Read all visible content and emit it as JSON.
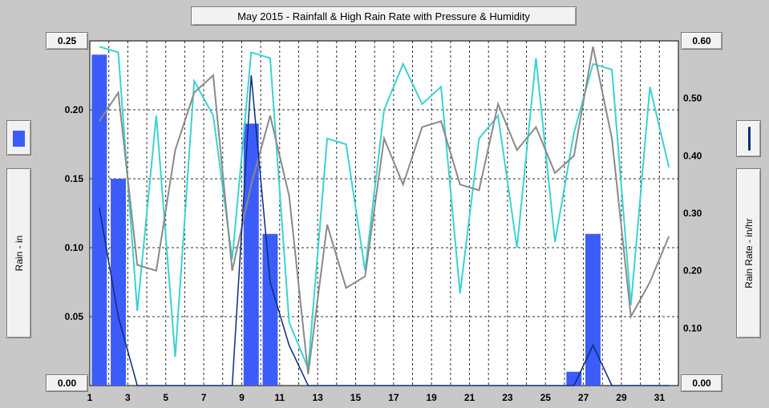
{
  "chart_data": {
    "type": "bar",
    "title": "May 2015 - Rainfall & High Rain Rate with Pressure & Humidity",
    "ylabel": "Rain - in",
    "y2label": "Rain Rate - in/hr",
    "ylim": [
      0,
      0.25
    ],
    "y2lim": [
      0,
      0.6
    ],
    "y_ticks": [
      "0.05",
      "0.10",
      "0.15",
      "0.20"
    ],
    "y_min_label": "0.00",
    "y_max_label": "0.25",
    "y2_ticks": [
      "0.10",
      "0.20",
      "0.30",
      "0.40",
      "0.50"
    ],
    "y2_min_label": "0.00",
    "y2_max_label": "0.60",
    "x_ticks": [
      "1",
      "3",
      "5",
      "7",
      "9",
      "11",
      "13",
      "15",
      "17",
      "19",
      "21",
      "23",
      "25",
      "27",
      "29",
      "31"
    ],
    "grid": true,
    "colors": {
      "rain": "#3c5cfa",
      "rate": "#0c2d78",
      "humidity": "#3cd2d2",
      "pressure": "#8a8a8a"
    },
    "series": [
      {
        "values": [
          0.24,
          0.15,
          0,
          0,
          0,
          0,
          0,
          0,
          0.19,
          0.11,
          0,
          0,
          0,
          0,
          0,
          0,
          0,
          0,
          0,
          0,
          0,
          0,
          0,
          0,
          0,
          0.01,
          0.11,
          0,
          0,
          0,
          0
        ]
      },
      {
        "values": [
          0.31,
          0.12,
          0,
          0,
          0,
          0,
          0,
          0,
          0.54,
          0.18,
          0.07,
          0,
          0,
          0,
          0,
          0,
          0,
          0,
          0,
          0,
          0,
          0,
          0,
          0,
          0,
          0,
          0.07,
          0,
          0,
          0,
          0
        ]
      },
      {
        "values": [
          0.59,
          0.58,
          0.13,
          0.47,
          0.05,
          0.53,
          0.47,
          0.22,
          0.58,
          0.57,
          0.11,
          0.03,
          0.43,
          0.42,
          0.2,
          0.48,
          0.56,
          0.49,
          0.52,
          0.16,
          0.43,
          0.47,
          0.24,
          0.57,
          0.25,
          0.44,
          0.56,
          0.55,
          0.14,
          0.52,
          0.38
        ]
      },
      {
        "values": [
          0.46,
          0.51,
          0.21,
          0.2,
          0.41,
          0.51,
          0.54,
          0.2,
          0.35,
          0.47,
          0.33,
          0.02,
          0.28,
          0.17,
          0.19,
          0.43,
          0.35,
          0.45,
          0.46,
          0.35,
          0.34,
          0.49,
          0.41,
          0.45,
          0.37,
          0.4,
          0.59,
          0.43,
          0.12,
          0.18,
          0.26
        ]
      }
    ]
  }
}
